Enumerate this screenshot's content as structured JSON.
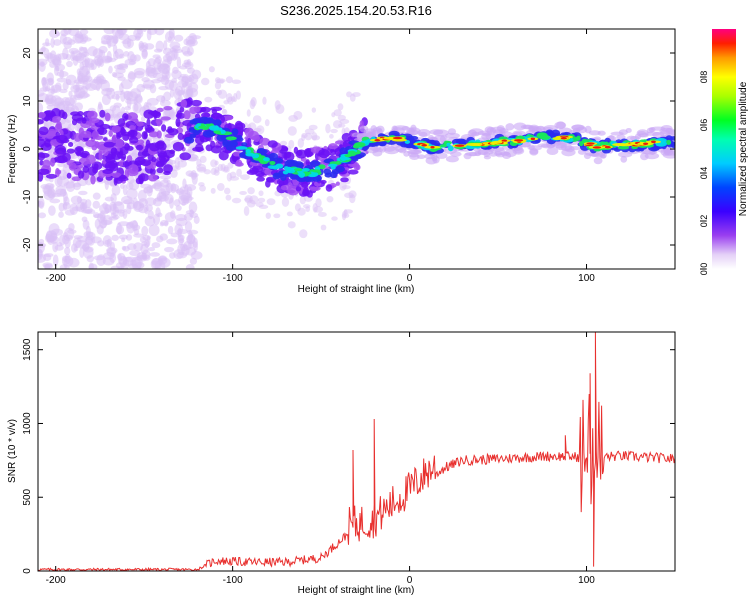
{
  "title": "S236.2025.154.20.53.R16",
  "chart_data": [
    {
      "type": "heatmap",
      "xlabel": "Height of straight line (km)",
      "ylabel": "Frequency (Hz)",
      "xlim": [
        -210,
        150
      ],
      "ylim": [
        -25,
        25
      ],
      "xticks": [
        -200,
        -100,
        0,
        100
      ],
      "yticks": [
        -20,
        -10,
        0,
        10,
        20
      ],
      "colorbar": {
        "label": "Normalized spectral amplitude",
        "ticks": [
          "0.0",
          "0.2",
          "0.4",
          "0.6",
          "0.8"
        ],
        "range": [
          0,
          1
        ]
      },
      "ridge": [
        {
          "x": -210,
          "y": 1.0
        },
        {
          "x": -180,
          "y": 0.5
        },
        {
          "x": -150,
          "y": 0.0
        },
        {
          "x": -130,
          "y": 3.0
        },
        {
          "x": -115,
          "y": 5.0
        },
        {
          "x": -100,
          "y": 2.0
        },
        {
          "x": -85,
          "y": -2.0
        },
        {
          "x": -70,
          "y": -4.5
        },
        {
          "x": -55,
          "y": -5.0
        },
        {
          "x": -40,
          "y": -3.0
        },
        {
          "x": -25,
          "y": 1.5
        },
        {
          "x": -10,
          "y": 2.5
        },
        {
          "x": 0,
          "y": 1.5
        },
        {
          "x": 10,
          "y": 0.5
        },
        {
          "x": 40,
          "y": 1.0
        },
        {
          "x": 80,
          "y": 2.5
        },
        {
          "x": 95,
          "y": 2.0
        },
        {
          "x": 105,
          "y": 0.5
        },
        {
          "x": 150,
          "y": 1.5
        }
      ]
    },
    {
      "type": "line",
      "xlabel": "Height of straight line (km)",
      "ylabel": "SNR (10 * v/v)",
      "xlim": [
        -210,
        150
      ],
      "ylim": [
        0,
        1620
      ],
      "xticks": [
        -200,
        -100,
        0,
        100
      ],
      "yticks": [
        0,
        500,
        1000,
        1500
      ],
      "color": "#e8302e",
      "trend": [
        {
          "x": -210,
          "y": 10
        },
        {
          "x": -120,
          "y": 10
        },
        {
          "x": -110,
          "y": 70
        },
        {
          "x": -90,
          "y": 60
        },
        {
          "x": -70,
          "y": 60
        },
        {
          "x": -50,
          "y": 90
        },
        {
          "x": -35,
          "y": 250
        },
        {
          "x": -20,
          "y": 300
        },
        {
          "x": -10,
          "y": 400
        },
        {
          "x": 0,
          "y": 500
        },
        {
          "x": 10,
          "y": 620
        },
        {
          "x": 20,
          "y": 700
        },
        {
          "x": 30,
          "y": 750
        },
        {
          "x": 50,
          "y": 760
        },
        {
          "x": 80,
          "y": 780
        },
        {
          "x": 100,
          "y": 770
        },
        {
          "x": 120,
          "y": 780
        },
        {
          "x": 150,
          "y": 760
        }
      ],
      "peaks": [
        {
          "x": -32,
          "y": 820
        },
        {
          "x": -20,
          "y": 1030
        },
        {
          "x": 102,
          "y": 1340
        },
        {
          "x": 105,
          "y": 1620
        },
        {
          "x": 104,
          "y": 30
        },
        {
          "x": 88,
          "y": 920
        }
      ]
    }
  ]
}
